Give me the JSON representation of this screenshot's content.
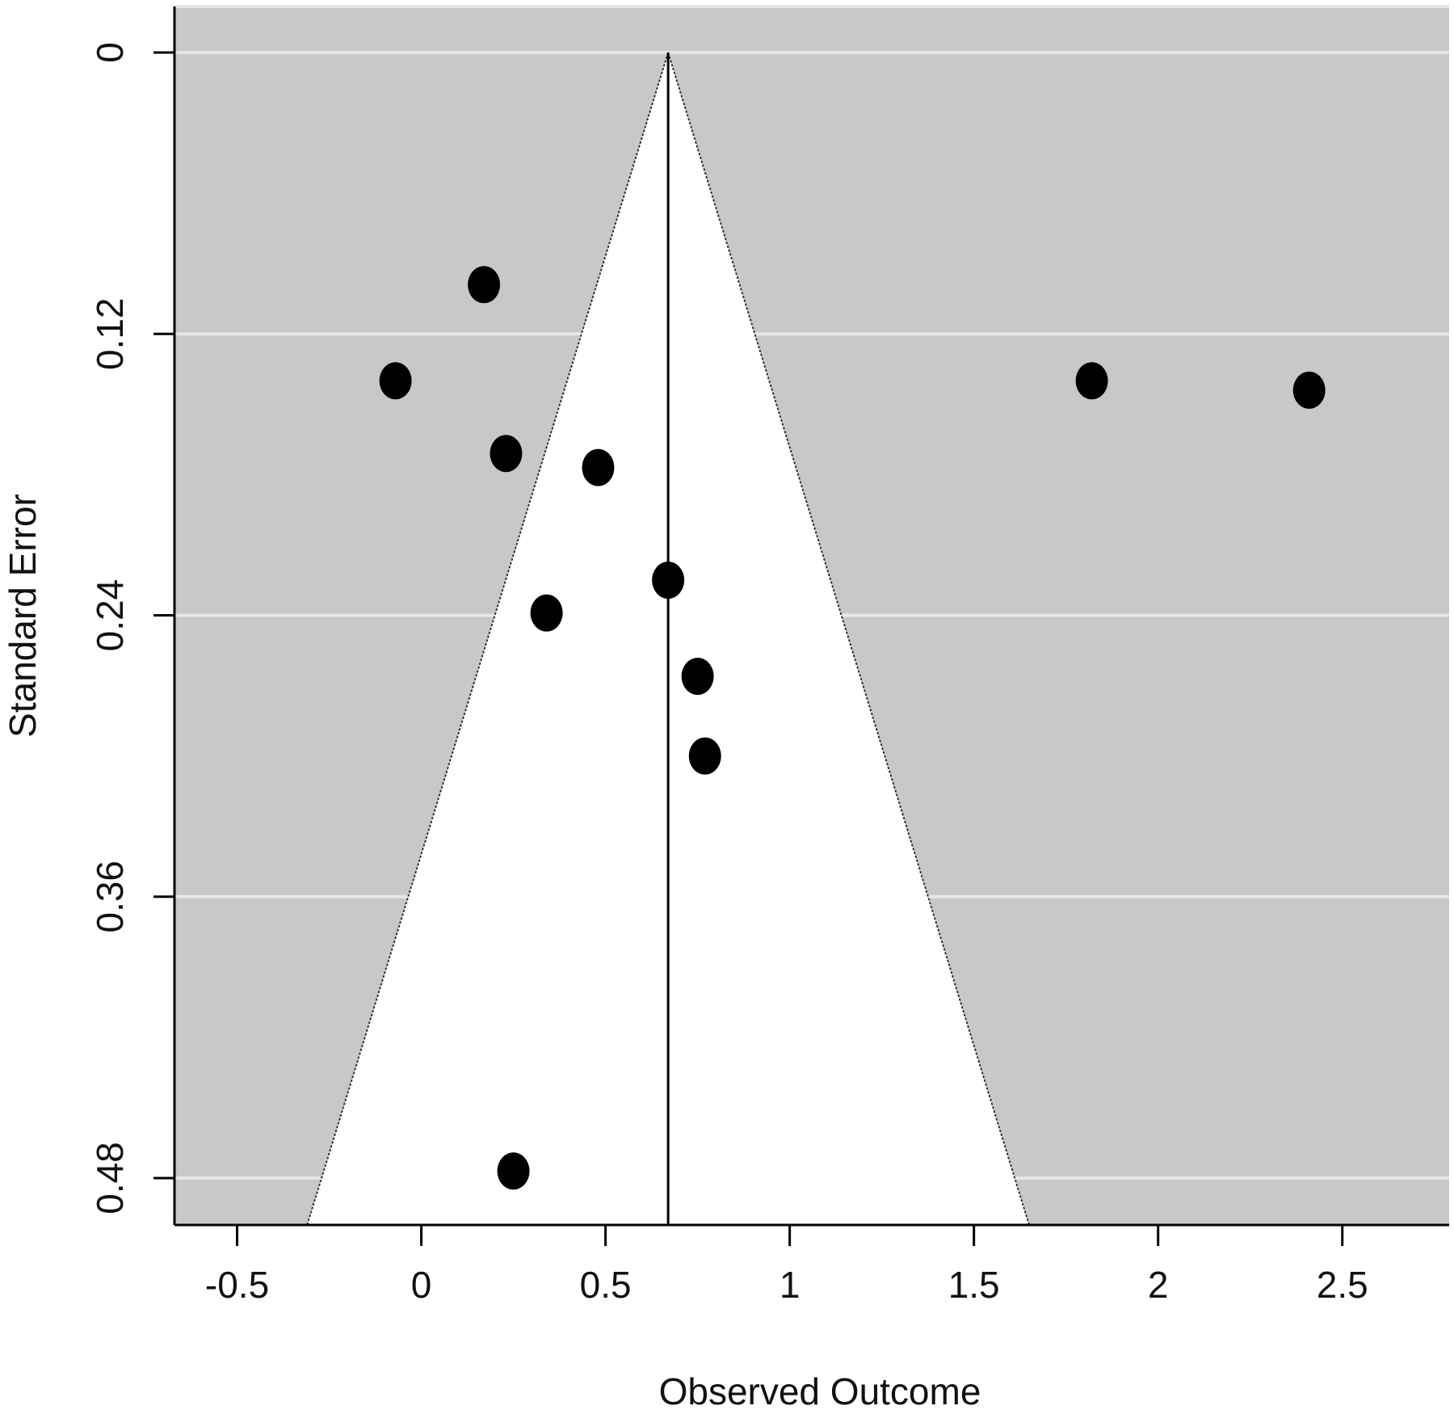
{
  "chart_data": {
    "type": "scatter",
    "subtype": "funnel",
    "title": "",
    "xlabel": "Observed Outcome",
    "ylabel": "Standard Error",
    "xlim": [
      -0.67,
      2.79
    ],
    "ylim": [
      0.5,
      0
    ],
    "y_reversed": true,
    "x_ticks": [
      -0.5,
      0,
      0.5,
      1,
      1.5,
      2,
      2.5
    ],
    "x_tick_labels": [
      "-0.5",
      "0",
      "0.5",
      "1",
      "1.5",
      "2",
      "2.5"
    ],
    "y_ticks": [
      0,
      0.12,
      0.24,
      0.36,
      0.48
    ],
    "y_tick_labels": [
      "0",
      "0.12",
      "0.24",
      "0.36",
      "0.48"
    ],
    "grid": true,
    "background_color": "#c8c8c8",
    "gridline_color": "#e6e6e6",
    "funnel_color": "#ffffff",
    "point_color": "#000000",
    "summary_estimate": 0.67,
    "funnel": {
      "center": 0.67,
      "se_max": 0.5,
      "z": 1.96
    },
    "points": [
      {
        "x": 0.17,
        "y": 0.099
      },
      {
        "x": -0.07,
        "y": 0.14
      },
      {
        "x": 1.82,
        "y": 0.14
      },
      {
        "x": 2.41,
        "y": 0.144
      },
      {
        "x": 0.23,
        "y": 0.171
      },
      {
        "x": 0.48,
        "y": 0.177
      },
      {
        "x": 0.67,
        "y": 0.225
      },
      {
        "x": 0.34,
        "y": 0.239
      },
      {
        "x": 0.75,
        "y": 0.266
      },
      {
        "x": 0.77,
        "y": 0.3
      },
      {
        "x": 0.25,
        "y": 0.477
      }
    ]
  }
}
